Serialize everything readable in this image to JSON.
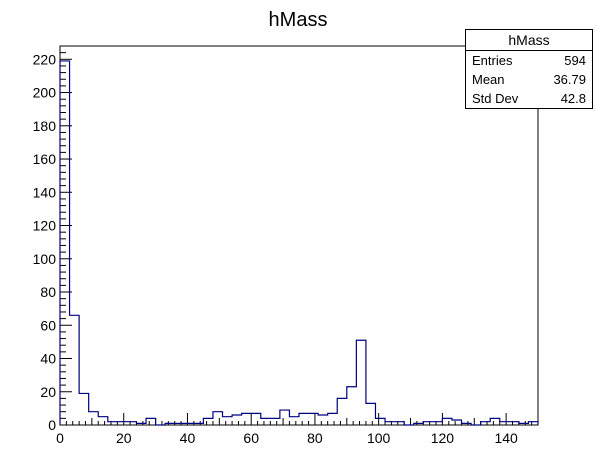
{
  "chart_data": {
    "type": "bar",
    "title": "hMass",
    "xlabel": "",
    "ylabel": "",
    "xlim": [
      0,
      150
    ],
    "ylim": [
      0,
      228
    ],
    "bin_width": 3,
    "x_ticks": [
      0,
      20,
      40,
      60,
      80,
      100,
      120,
      140
    ],
    "y_ticks": [
      0,
      20,
      40,
      60,
      80,
      100,
      120,
      140,
      160,
      180,
      200,
      220
    ],
    "x_tick_labels": [
      "0",
      "20",
      "40",
      "60",
      "80",
      "100",
      "120",
      "140"
    ],
    "y_tick_labels": [
      "0",
      "20",
      "40",
      "60",
      "80",
      "100",
      "120",
      "140",
      "160",
      "180",
      "200",
      "220"
    ],
    "bin_edges_start": [
      0,
      3,
      6,
      9,
      12,
      15,
      18,
      21,
      24,
      27,
      30,
      33,
      36,
      39,
      42,
      45,
      48,
      51,
      54,
      57,
      60,
      63,
      66,
      69,
      72,
      75,
      78,
      81,
      84,
      87,
      90,
      93,
      96,
      99,
      102,
      105,
      108,
      111,
      114,
      117,
      120,
      123,
      126,
      129,
      132,
      135,
      138,
      141,
      144,
      147
    ],
    "values": [
      219,
      66,
      19,
      8,
      5,
      2,
      2,
      2,
      1,
      4,
      0,
      1,
      1,
      1,
      1,
      4,
      8,
      5,
      6,
      7,
      7,
      4,
      4,
      9,
      5,
      7,
      7,
      6,
      7,
      16,
      23,
      51,
      13,
      4,
      2,
      2,
      0,
      1,
      2,
      2,
      4,
      3,
      1,
      0,
      2,
      4,
      2,
      2,
      1,
      2
    ],
    "grid": false,
    "line_color": "#000080",
    "stats": {
      "title": "hMass",
      "entries_label": "Entries",
      "entries": "594",
      "mean_label": "Mean",
      "mean": "36.79",
      "stddev_label": "Std Dev",
      "stddev": "42.8"
    }
  }
}
